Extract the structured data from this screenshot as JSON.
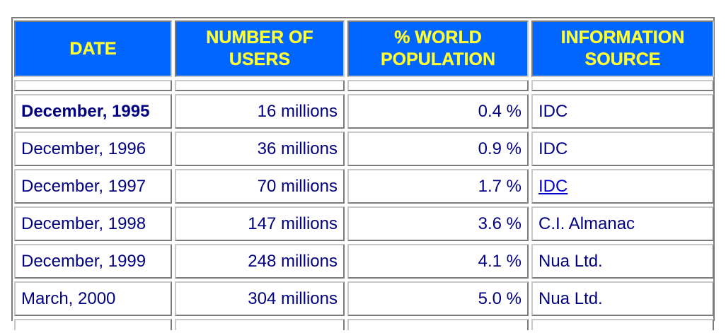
{
  "table": {
    "headers": {
      "date": "DATE",
      "users_line1": "NUMBER OF",
      "users_line2": "USERS",
      "pct_line1": "% WORLD",
      "pct_line2": "POPULATION",
      "source_line1": "INFORMATION",
      "source_line2": "SOURCE"
    },
    "rows": [
      {
        "date": "December, 1995",
        "users": "16 millions",
        "pct": "0.4 %",
        "source": "IDC"
      },
      {
        "date": "December, 1996",
        "users": "36 millions",
        "pct": "0.9 %",
        "source": "IDC"
      },
      {
        "date": "December, 1997",
        "users": "70 millions",
        "pct": "1.7 %",
        "source": "IDC"
      },
      {
        "date": "December, 1998",
        "users": "147 millions",
        "pct": "3.6 %",
        "source": "C.I. Almanac"
      },
      {
        "date": "December, 1999",
        "users": "248 millions",
        "pct": "4.1 %",
        "source": "Nua Ltd."
      },
      {
        "date": "March, 2000",
        "users": "304 millions",
        "pct": "5.0 %",
        "source": "Nua Ltd."
      }
    ]
  },
  "colors": {
    "header_bg": "#0066ff",
    "header_text": "#ffff33",
    "cell_text": "#000080",
    "link": "#0000cc"
  }
}
